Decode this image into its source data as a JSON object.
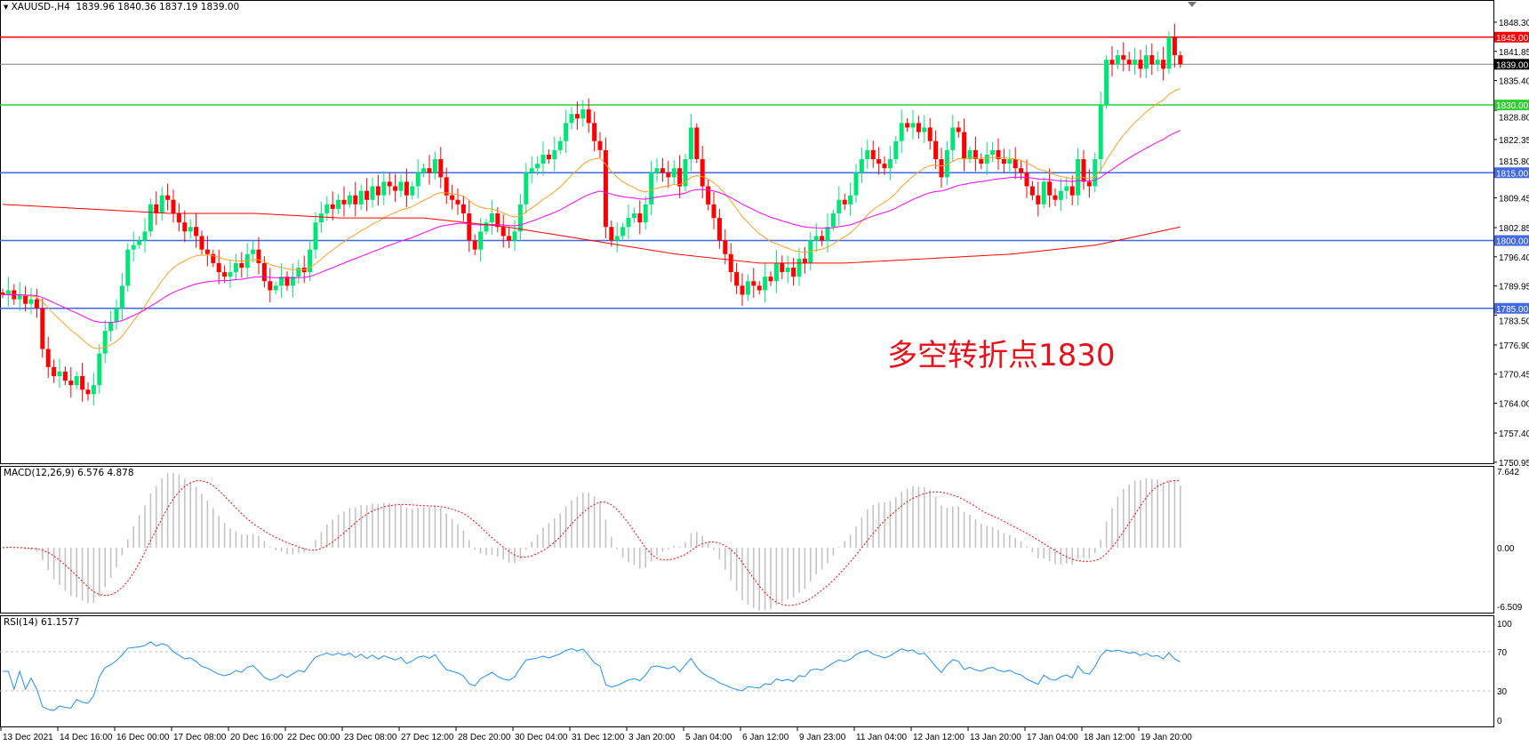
{
  "header": {
    "symbol": "XAUUSD-,H4",
    "ohlc": "1839.96 1840.36 1837.19 1839.00"
  },
  "annotation": "多空转折点1830",
  "macd_label": "MACD(12,26,9) 6.576 4.878",
  "rsi_label": "RSI(14) 61.1577",
  "colors": {
    "bull": "#00e676",
    "bear": "#ff0000",
    "ma_fast": "#ffa020",
    "ma_mid": "#ff00ff",
    "ma_slow": "#ff0000",
    "macd_hist": "#c0c0c0",
    "macd_signal": "#ff0000",
    "rsi": "#1e90ff"
  },
  "chart_data": [
    {
      "type": "candlestick",
      "symbol": "XAUUSD-",
      "timeframe": "H4",
      "ylim": [
        1750.95,
        1851.5
      ],
      "y_ticks": [
        "1848.30",
        "1841.85",
        "1835.40",
        "1828.80",
        "1822.35",
        "1815.80",
        "1809.45",
        "1802.85",
        "1796.40",
        "1789.95",
        "1783.50",
        "1776.90",
        "1770.45",
        "1764.00",
        "1757.40",
        "1750.95"
      ],
      "x_tick_labels": [
        "13 Dec 2021",
        "14 Dec 16:00",
        "16 Dec 00:00",
        "17 Dec 08:00",
        "20 Dec 16:00",
        "22 Dec 00:00",
        "23 Dec 08:00",
        "27 Dec 12:00",
        "28 Dec 20:00",
        "30 Dec 04:00",
        "31 Dec 12:00",
        "3 Jan 20:00",
        "5 Jan 04:00",
        "6 Jan 12:00",
        "9 Jan 23:00",
        "11 Jan 04:00",
        "12 Jan 12:00",
        "13 Jan 20:00",
        "17 Jan 04:00",
        "18 Jan 12:00",
        "19 Jan 20:00"
      ],
      "closes": [
        1788,
        1789,
        1787,
        1788,
        1786,
        1787,
        1785,
        1776,
        1772,
        1770,
        1771,
        1769,
        1768,
        1770,
        1767,
        1766,
        1768,
        1775,
        1780,
        1782,
        1785,
        1790,
        1798,
        1799,
        1800,
        1802,
        1808,
        1806,
        1810,
        1809,
        1806,
        1804,
        1802,
        1803,
        1801,
        1798,
        1797,
        1795,
        1793,
        1792,
        1793,
        1795,
        1794,
        1797,
        1798,
        1795,
        1791,
        1789,
        1790,
        1792,
        1790,
        1792,
        1794,
        1793,
        1798,
        1804,
        1806,
        1808,
        1807,
        1809,
        1808,
        1810,
        1808,
        1811,
        1809,
        1812,
        1810,
        1813,
        1812,
        1811,
        1813,
        1810,
        1812,
        1815,
        1816,
        1815,
        1818,
        1814,
        1810,
        1809,
        1808,
        1806,
        1800,
        1798,
        1802,
        1804,
        1806,
        1803,
        1801,
        1800,
        1802,
        1808,
        1815,
        1816,
        1817,
        1819,
        1818,
        1820,
        1822,
        1826,
        1828,
        1827,
        1829,
        1826,
        1822,
        1820,
        1803,
        1800,
        1801,
        1803,
        1805,
        1806,
        1804,
        1808,
        1815,
        1816,
        1815,
        1814,
        1816,
        1812,
        1818,
        1825,
        1818,
        1812,
        1808,
        1805,
        1800,
        1797,
        1793,
        1790,
        1788,
        1791,
        1790,
        1789,
        1792,
        1791,
        1795,
        1793,
        1794,
        1792,
        1796,
        1795,
        1800,
        1801,
        1800,
        1803,
        1806,
        1809,
        1808,
        1810,
        1815,
        1818,
        1820,
        1818,
        1817,
        1816,
        1818,
        1822,
        1826,
        1825,
        1826,
        1824,
        1825,
        1822,
        1818,
        1814,
        1820,
        1825,
        1824,
        1818,
        1820,
        1818,
        1817,
        1819,
        1820,
        1818,
        1817,
        1818,
        1816,
        1815,
        1812,
        1810,
        1808,
        1813,
        1810,
        1809,
        1811,
        1812,
        1810,
        1818,
        1813,
        1812,
        1818,
        1830,
        1840,
        1839,
        1841,
        1840,
        1839,
        1840,
        1838,
        1841,
        1839,
        1840,
        1838,
        1845,
        1841,
        1839
      ],
      "ma_slow_values_evenly_spaced": [
        1808,
        1807,
        1806,
        1806,
        1805,
        1805,
        1803,
        1800,
        1797,
        1795,
        1795,
        1796,
        1797,
        1799,
        1803
      ],
      "horizontal_levels": [
        {
          "price": 1845.0,
          "label": "1845.00",
          "color": "#ff0000"
        },
        {
          "price": 1839.0,
          "label": "1839.00",
          "color": "#808080",
          "current": true
        },
        {
          "price": 1830.0,
          "label": "1830.00",
          "color": "#32cd32"
        },
        {
          "price": 1815.0,
          "label": "1815.00",
          "color": "#4169e1"
        },
        {
          "price": 1800.0,
          "label": "1800.00",
          "color": "#4169e1"
        },
        {
          "price": 1785.0,
          "label": "1785.00",
          "color": "#4169e1"
        }
      ]
    },
    {
      "type": "bar",
      "indicator": "MACD(12,26,9)",
      "y_ticks": [
        "7.642",
        "0.00",
        "-6.509"
      ],
      "ylim": [
        -6.509,
        7.642
      ]
    },
    {
      "type": "line",
      "indicator": "RSI(14)",
      "y_ticks": [
        "100",
        "70",
        "30",
        "0"
      ],
      "ylim": [
        0,
        100
      ],
      "levels": [
        70,
        30
      ]
    }
  ]
}
